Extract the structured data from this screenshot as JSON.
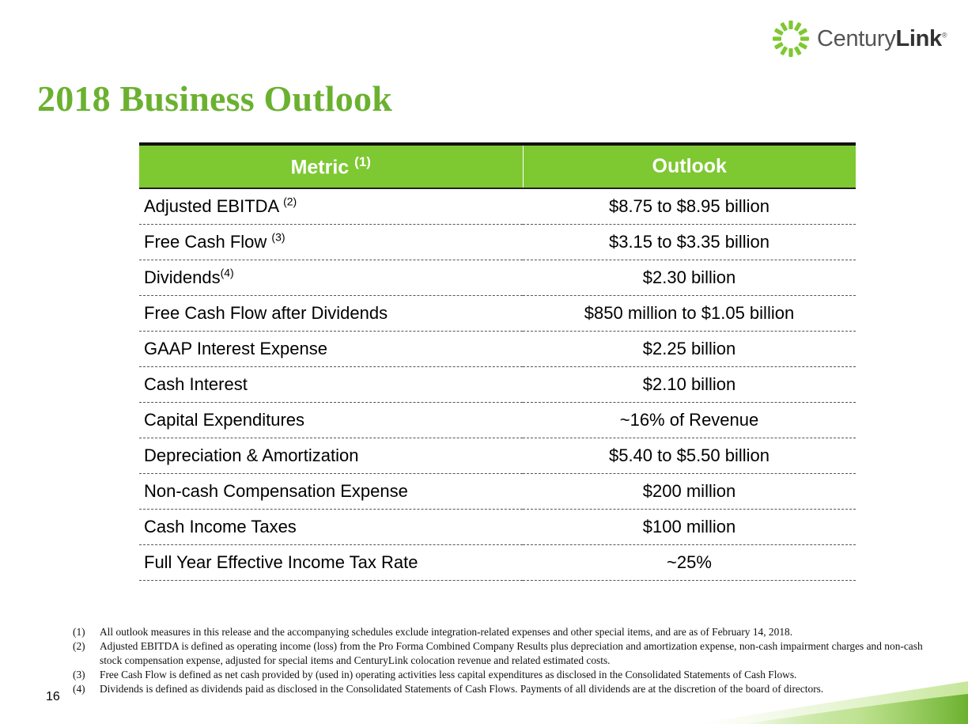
{
  "brand": {
    "logo_text_light": "Century",
    "logo_text_bold": "Link",
    "registered_mark": "®",
    "logo_icon": "starburst-logo-icon",
    "accent_color": "#7ec832",
    "title_color": "#6bb130"
  },
  "slide": {
    "title": "2018 Business Outlook",
    "page_number": "16"
  },
  "table": {
    "header": {
      "metric": "Metric",
      "metric_note": "(1)",
      "outlook": "Outlook"
    },
    "rows": [
      {
        "metric": "Adjusted EBITDA",
        "note": "(2)",
        "value": "$8.75 to $8.95 billion"
      },
      {
        "metric": "Free Cash Flow",
        "note": "(3)",
        "value": "$3.15 to $3.35 billion"
      },
      {
        "metric": "Dividends",
        "note": "(4)",
        "value": "$2.30 billion"
      },
      {
        "metric": "Free Cash Flow after Dividends",
        "note": "",
        "value": "$850 million to $1.05 billion"
      },
      {
        "metric": "GAAP Interest Expense",
        "note": "",
        "value": "$2.25 billion"
      },
      {
        "metric": "Cash Interest",
        "note": "",
        "value": "$2.10 billion"
      },
      {
        "metric": "Capital Expenditures",
        "note": "",
        "value": "~16% of Revenue"
      },
      {
        "metric": "Depreciation & Amortization",
        "note": "",
        "value": "$5.40 to $5.50 billion"
      },
      {
        "metric": "Non-cash Compensation Expense",
        "note": "",
        "value": "$200 million"
      },
      {
        "metric": "Cash Income Taxes",
        "note": "",
        "value": "$100 million"
      },
      {
        "metric": "Full Year Effective Income Tax Rate",
        "note": "",
        "value": "~25%"
      }
    ]
  },
  "footnotes": [
    {
      "num": "(1)",
      "text": "All outlook measures in this release and the accompanying schedules exclude integration-related expenses and other special items, and are as of February 14, 2018."
    },
    {
      "num": "(2)",
      "text": "Adjusted EBITDA is defined as operating income (loss) from the Pro Forma Combined Company Results plus depreciation and amortization expense, non-cash impairment charges and non-cash stock compensation expense, adjusted for special items and CenturyLink colocation revenue and related estimated costs."
    },
    {
      "num": "(3)",
      "text": "Free Cash Flow is defined as net cash provided by (used in) operating activities less capital expenditures as disclosed in the Consolidated Statements of Cash Flows."
    },
    {
      "num": "(4)",
      "text": "Dividends is defined as dividends paid as disclosed in the Consolidated Statements of Cash Flows. Payments of all dividends are at the discretion of the board of directors."
    }
  ]
}
